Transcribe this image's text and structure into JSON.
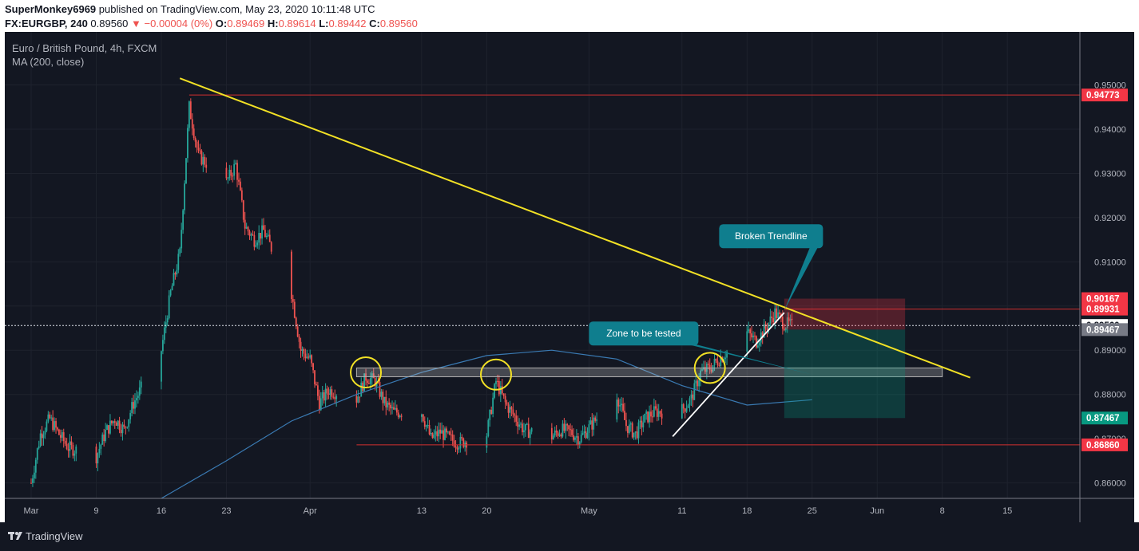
{
  "header": {
    "author": "SuperMonkey6969",
    "published_text": "published on TradingView.com, May 23, 2020 10:11:48 UTC",
    "symbol": "FX:EURGBP, 240",
    "last": "0.89560",
    "change": "▼ −0.00004 (0%)",
    "o_label": "O:",
    "o_val": "0.89469",
    "h_label": "H:",
    "h_val": "0.89614",
    "l_label": "L:",
    "l_val": "0.89442",
    "c_label": "C:",
    "c_val": "0.89560"
  },
  "legend": {
    "title": "Euro / British Pound, 4h, FXCM",
    "ma": "MA (200, close)"
  },
  "footer": {
    "brand": "TradingView"
  },
  "colors": {
    "bg": "#131722",
    "up": "#26a69a",
    "down": "#ef5350",
    "grid": "#1e222d",
    "trend": "#f2e125",
    "ma": "#3a7ab3",
    "callout": "#0f7e8e",
    "red_line": "#d32f2f"
  },
  "chart_data": {
    "type": "candlestick",
    "title": "Euro / British Pound, 4h, FXCM",
    "x_tick_labels": [
      "Mar",
      "9",
      "16",
      "23",
      "Apr",
      "13",
      "20",
      "May",
      "11",
      "18",
      "25",
      "Jun",
      "8",
      "15"
    ],
    "x_tick_dates": [
      "2020-03-02",
      "2020-03-09",
      "2020-03-16",
      "2020-03-23",
      "2020-04-01",
      "2020-04-13",
      "2020-04-20",
      "2020-05-01",
      "2020-05-11",
      "2020-05-18",
      "2020-05-25",
      "2020-06-01",
      "2020-06-08",
      "2020-06-15"
    ],
    "y_ticks": [
      "0.86000",
      "0.87000",
      "0.88000",
      "0.89000",
      "0.90000",
      "0.91000",
      "0.92000",
      "0.93000",
      "0.94000",
      "0.95000"
    ],
    "ylim": [
      0.8565,
      0.962
    ],
    "close_path": [
      [
        "2020-03-02",
        0.86
      ],
      [
        "2020-03-03",
        0.871
      ],
      [
        "2020-03-04",
        0.8745
      ],
      [
        "2020-03-05",
        0.871
      ],
      [
        "2020-03-06",
        0.868
      ],
      [
        "2020-03-09",
        0.866
      ],
      [
        "2020-03-10",
        0.8715
      ],
      [
        "2020-03-11",
        0.8745
      ],
      [
        "2020-03-12",
        0.872
      ],
      [
        "2020-03-13",
        0.878
      ],
      [
        "2020-03-16",
        0.89
      ],
      [
        "2020-03-17",
        0.903
      ],
      [
        "2020-03-18",
        0.912
      ],
      [
        "2020-03-19",
        0.945
      ],
      [
        "2020-03-20",
        0.934
      ],
      [
        "2020-03-23",
        0.928
      ],
      [
        "2020-03-24",
        0.932
      ],
      [
        "2020-03-25",
        0.918
      ],
      [
        "2020-03-26",
        0.915
      ],
      [
        "2020-03-27",
        0.917
      ],
      [
        "2020-03-30",
        0.903
      ],
      [
        "2020-03-31",
        0.89
      ],
      [
        "2020-04-01",
        0.888
      ],
      [
        "2020-04-02",
        0.878
      ],
      [
        "2020-04-03",
        0.881
      ],
      [
        "2020-04-06",
        0.879
      ],
      [
        "2020-04-07",
        0.884
      ],
      [
        "2020-04-08",
        0.883
      ],
      [
        "2020-04-09",
        0.878
      ],
      [
        "2020-04-10",
        0.876
      ],
      [
        "2020-04-13",
        0.876
      ],
      [
        "2020-04-14",
        0.87
      ],
      [
        "2020-04-15",
        0.8715
      ],
      [
        "2020-04-16",
        0.87
      ],
      [
        "2020-04-17",
        0.869
      ],
      [
        "2020-04-20",
        0.871
      ],
      [
        "2020-04-21",
        0.883
      ],
      [
        "2020-04-22",
        0.878
      ],
      [
        "2020-04-23",
        0.875
      ],
      [
        "2020-04-24",
        0.872
      ],
      [
        "2020-04-27",
        0.8705
      ],
      [
        "2020-04-28",
        0.872
      ],
      [
        "2020-04-29",
        0.8715
      ],
      [
        "2020-04-30",
        0.87
      ],
      [
        "2020-05-01",
        0.8725
      ],
      [
        "2020-05-04",
        0.88
      ],
      [
        "2020-05-05",
        0.873
      ],
      [
        "2020-05-06",
        0.871
      ],
      [
        "2020-05-07",
        0.8745
      ],
      [
        "2020-05-08",
        0.876
      ],
      [
        "2020-05-11",
        0.8765
      ],
      [
        "2020-05-12",
        0.879
      ],
      [
        "2020-05-13",
        0.885
      ],
      [
        "2020-05-14",
        0.886
      ],
      [
        "2020-05-15",
        0.888
      ],
      [
        "2020-05-18",
        0.894
      ],
      [
        "2020-05-19",
        0.892
      ],
      [
        "2020-05-20",
        0.895
      ],
      [
        "2020-05-21",
        0.8985
      ],
      [
        "2020-05-22",
        0.896
      ],
      [
        "2020-05-23",
        0.8956
      ]
    ],
    "moving_average": {
      "name": "MA (200, close)",
      "points": [
        [
          "2020-03-16",
          0.8565
        ],
        [
          "2020-03-23",
          0.865
        ],
        [
          "2020-03-30",
          0.874
        ],
        [
          "2020-04-06",
          0.88
        ],
        [
          "2020-04-13",
          0.885
        ],
        [
          "2020-04-20",
          0.8888
        ],
        [
          "2020-04-27",
          0.89
        ],
        [
          "2020-05-04",
          0.888
        ],
        [
          "2020-05-11",
          0.882
        ],
        [
          "2020-05-18",
          0.8776
        ],
        [
          "2020-05-25",
          0.8788
        ]
      ]
    },
    "horizontal_levels": [
      {
        "price": "0.94773",
        "color": "#f23645",
        "line_from": "2020-03-19"
      },
      {
        "price": "0.90167",
        "color": "#f23645",
        "line_from": ""
      },
      {
        "price": "0.89931",
        "color": "#f23645",
        "line_from": "2020-05-22"
      },
      {
        "price": "0.89560",
        "color": "#ffffff",
        "line_from": "start",
        "dotted": true
      },
      {
        "price": "0.89467",
        "color": "#787b86",
        "line_from": ""
      },
      {
        "price": "0.87467",
        "color": "#089981",
        "line_from": ""
      },
      {
        "price": "0.86860",
        "color": "#f23645",
        "line_from": "2020-04-06"
      }
    ],
    "trendline": {
      "from": [
        "2020-03-18",
        0.9515
      ],
      "to": [
        "2020-06-11",
        0.8838
      ],
      "color": "#f2e125"
    },
    "uptrend_line": {
      "from": [
        "2020-05-10",
        0.8705
      ],
      "to": [
        "2020-05-22",
        0.8985
      ],
      "color": "#ffffff"
    },
    "zone": {
      "from": "2020-04-06",
      "to": "2020-06-08",
      "top": 0.886,
      "bottom": 0.884
    },
    "circles": [
      [
        "2020-04-07",
        0.885
      ],
      [
        "2020-04-21",
        0.8845
      ],
      [
        "2020-05-14",
        0.886
      ]
    ],
    "position": {
      "from": "2020-05-22",
      "to": "2020-06-04",
      "entry": 0.89467,
      "stop": 0.90167,
      "target": 0.87467
    },
    "annotations": [
      {
        "text": "Broken Trendline",
        "anchor": [
          "2020-05-15",
          0.9185
        ],
        "pointer": [
          "2020-05-22",
          0.899
        ]
      },
      {
        "text": "Zone to be tested",
        "anchor": [
          "2020-05-01",
          0.8965
        ],
        "pointer": [
          "2020-05-25",
          0.8845
        ]
      }
    ]
  }
}
